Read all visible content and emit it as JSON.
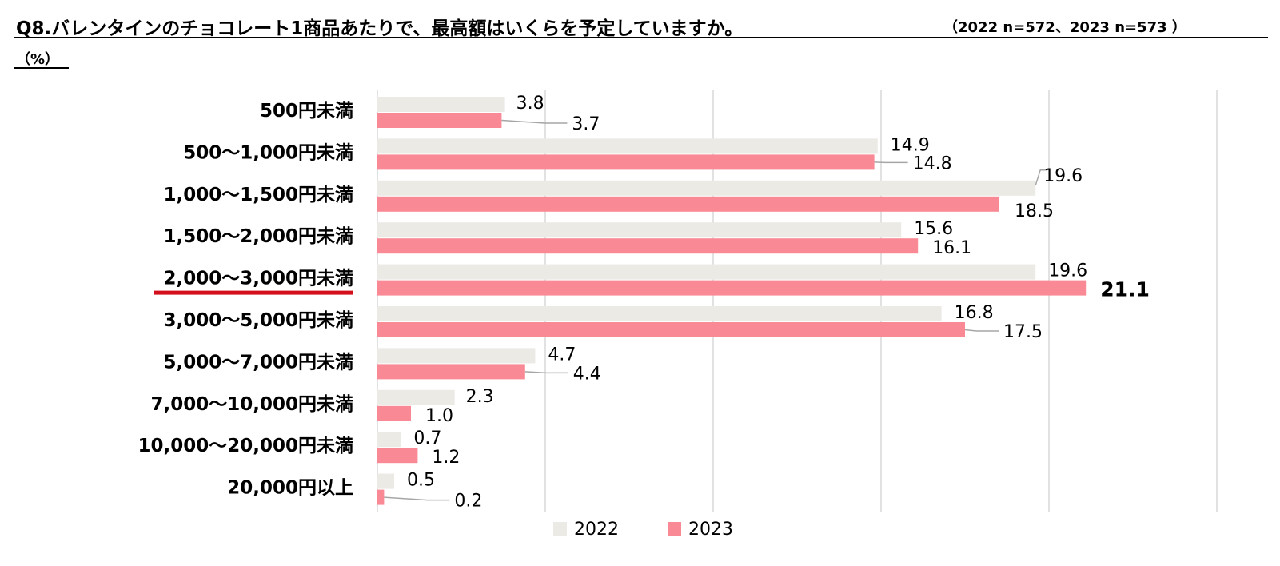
{
  "title": "Q8.バレンタインのチョコレート1商品あたりで、最高額はいくらを予定していますか。",
  "sample_note": "（2022 n=572、2023 n=573 ）",
  "unit": "（%）",
  "colors": {
    "s2022": "#ebeae5",
    "s2023": "#f98a95",
    "grid": "#d9d9d9",
    "leader": "#a6a6a6",
    "highlight": "#d40f1c"
  },
  "chart_data": {
    "type": "bar",
    "orientation": "horizontal",
    "categories": [
      "500円未満",
      "500〜1,000円未満",
      "1,000〜1,500円未満",
      "1,500〜2,000円未満",
      "2,000〜3,000円未満",
      "3,000〜5,000円未満",
      "5,000〜7,000円未満",
      "7,000〜10,000円未満",
      "10,000〜20,000円未満",
      "20,000円以上"
    ],
    "series": [
      {
        "name": "2022",
        "values": [
          3.8,
          14.9,
          19.6,
          15.6,
          19.6,
          16.8,
          4.7,
          2.3,
          0.7,
          0.5
        ],
        "labels": [
          "3.8",
          "14.9",
          "19.6",
          "15.6",
          "19.6",
          "16.8",
          "4.7",
          "2.3",
          "0.7",
          "0.5"
        ]
      },
      {
        "name": "2023",
        "values": [
          3.7,
          14.8,
          18.5,
          16.1,
          21.1,
          17.5,
          4.4,
          1.0,
          1.2,
          0.2
        ],
        "labels": [
          "3.7",
          "14.8",
          "18.5",
          "16.1",
          "21.1",
          "17.5",
          "4.4",
          "1.0",
          "1.2",
          "0.2"
        ]
      }
    ],
    "xlim": [
      0,
      25
    ],
    "grid": true,
    "legend_position": "bottom",
    "highlight_category": "2,000〜3,000円未満",
    "emphasized_label": "21.1"
  }
}
